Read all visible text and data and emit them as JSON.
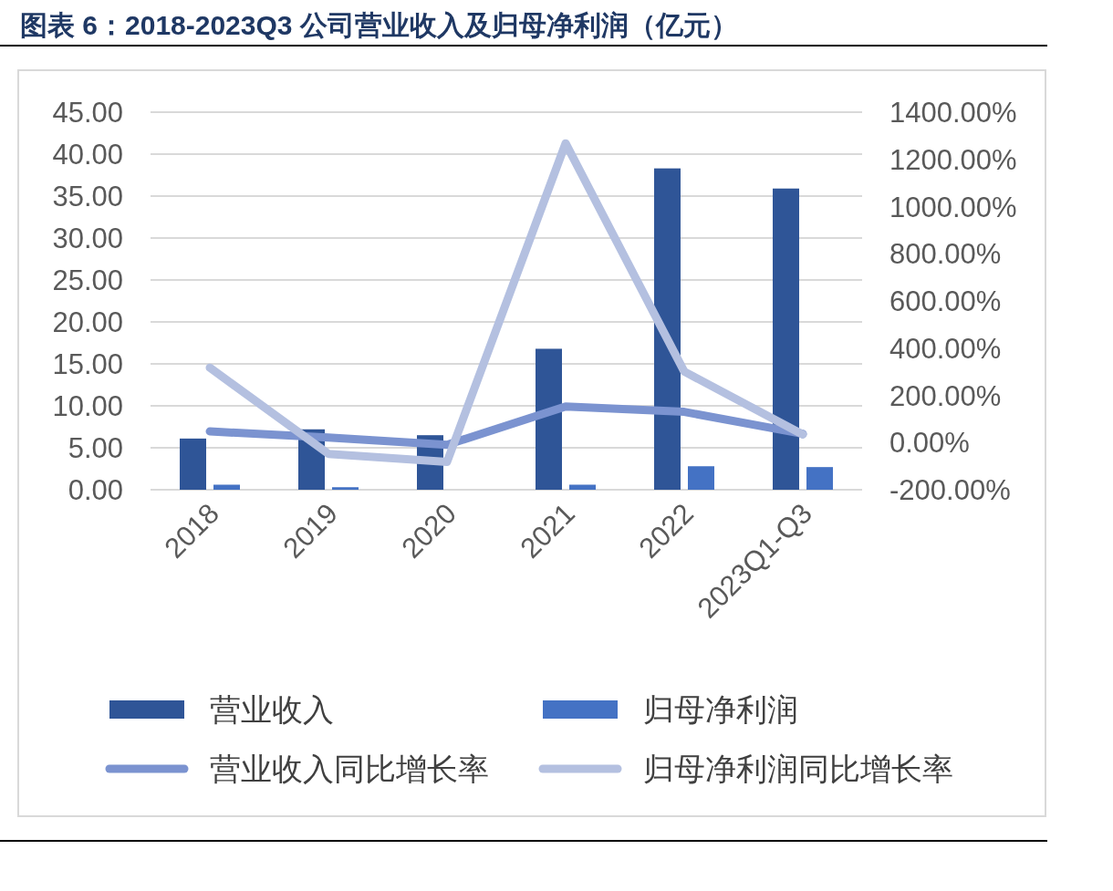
{
  "chart_data": {
    "type": "bar",
    "title": "图表 6：2018-2023Q3 公司营业收入及归母净利润（亿元）",
    "categories": [
      "2018",
      "2019",
      "2020",
      "2021",
      "2022",
      "2023Q1-Q3"
    ],
    "series": [
      {
        "name": "营业收入",
        "color": "#2f5597",
        "values": [
          6.1,
          7.2,
          6.5,
          16.8,
          38.3,
          35.9
        ]
      },
      {
        "name": "归母净利润",
        "color": "#4472c4",
        "values": [
          0.6,
          0.3,
          0.0,
          0.6,
          2.8,
          2.7
        ]
      },
      {
        "name": "营业收入同比增长率",
        "type": "line",
        "axis": "y2",
        "color": "#7b93d0",
        "values": [
          47,
          21,
          -10,
          153,
          130,
          37
        ]
      },
      {
        "name": "归母净利润同比增长率",
        "type": "line",
        "axis": "y2",
        "color": "#b4c0e0",
        "values": [
          317,
          -48,
          -82,
          1268,
          301,
          34
        ]
      }
    ],
    "ylim": [
      0,
      45
    ],
    "yticks": [
      {
        "value": 0,
        "label": "0.00"
      },
      {
        "value": 5,
        "label": "5.00"
      },
      {
        "value": 10,
        "label": "10.00"
      },
      {
        "value": 15,
        "label": "15.00"
      },
      {
        "value": 20,
        "label": "20.00"
      },
      {
        "value": 25,
        "label": "25.00"
      },
      {
        "value": 30,
        "label": "30.00"
      },
      {
        "value": 35,
        "label": "35.00"
      },
      {
        "value": 40,
        "label": "40.00"
      },
      {
        "value": 45,
        "label": "45.00"
      }
    ],
    "y2lim": [
      -200,
      1400
    ],
    "y2ticks": [
      {
        "value": -200,
        "label": "-200.00%"
      },
      {
        "value": 0,
        "label": "0.00%"
      },
      {
        "value": 200,
        "label": "200.00%"
      },
      {
        "value": 400,
        "label": "400.00%"
      },
      {
        "value": 600,
        "label": "600.00%"
      },
      {
        "value": 800,
        "label": "800.00%"
      },
      {
        "value": 1000,
        "label": "1000.00%"
      },
      {
        "value": 1200,
        "label": "1200.00%"
      },
      {
        "value": 1400,
        "label": "1400.00%"
      }
    ],
    "grid": "y",
    "legend": "bottom",
    "marker": "none",
    "line_style": "solid"
  }
}
